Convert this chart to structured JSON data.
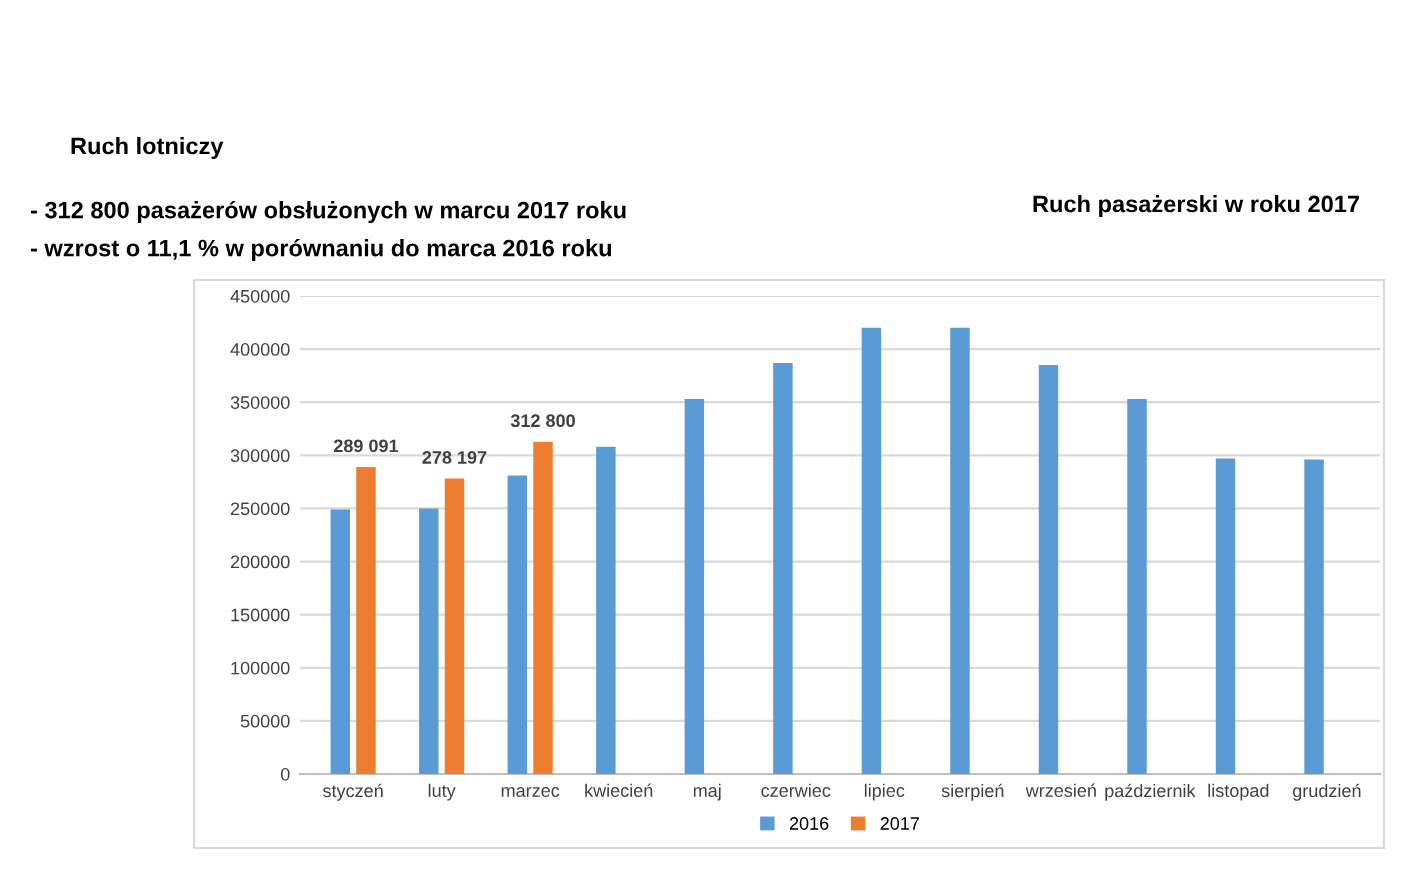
{
  "chart_data": {
    "type": "bar",
    "title": "Ruch pasażerski w roku 2017",
    "annotations": [
      "Ruch lotniczy",
      "- 312 800 pasażerów obsłużonych w marcu 2017 roku",
      "- wzrost o 11,1 % w porównaniu do marca 2016 roku"
    ],
    "categories": [
      "styczeń",
      "luty",
      "marzec",
      "kwiecień",
      "maj",
      "czerwiec",
      "lipiec",
      "sierpień",
      "wrzesień",
      "październik",
      "listopad",
      "grudzień"
    ],
    "series": [
      {
        "name": "2016",
        "color": "#5b9bd5",
        "values": [
          249000,
          250000,
          281000,
          308000,
          353000,
          387000,
          420000,
          420000,
          385000,
          353000,
          297000,
          296000
        ]
      },
      {
        "name": "2017",
        "color": "#ed7d31",
        "values": [
          289091,
          278197,
          312800,
          null,
          null,
          null,
          null,
          null,
          null,
          null,
          null,
          null
        ],
        "value_labels": [
          "289 091",
          "278 197",
          "312 800",
          null,
          null,
          null,
          null,
          null,
          null,
          null,
          null,
          null
        ]
      }
    ],
    "ylim": [
      0,
      450000
    ],
    "yticks": [
      0,
      50000,
      100000,
      150000,
      200000,
      250000,
      300000,
      350000,
      400000,
      450000
    ],
    "grid": "y",
    "legend": "bottom"
  }
}
